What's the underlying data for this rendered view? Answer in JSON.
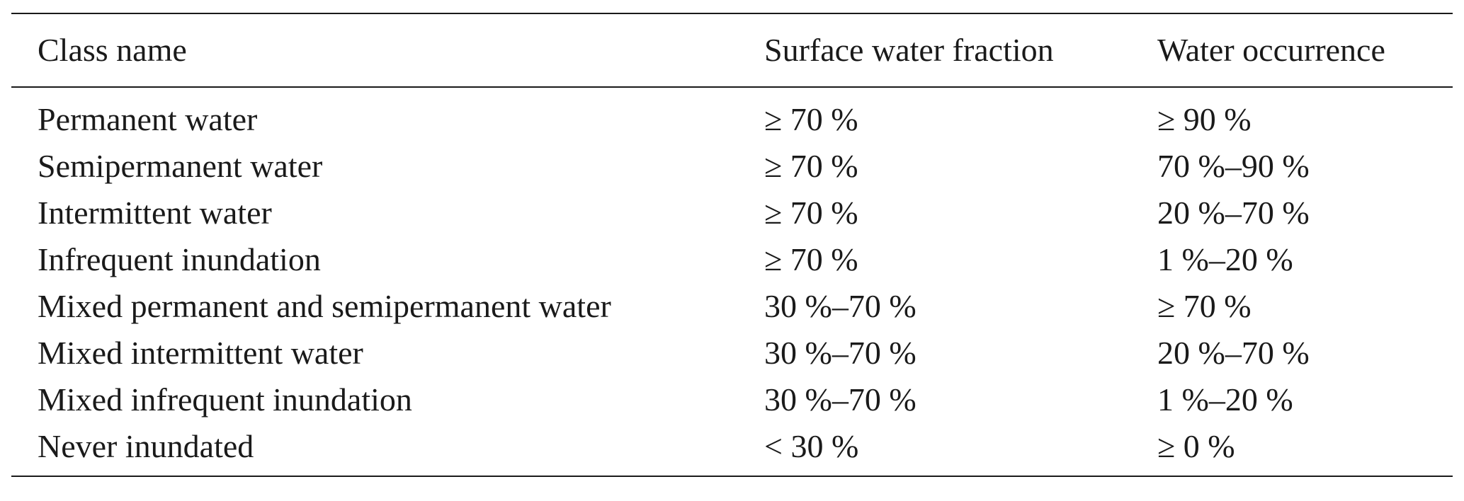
{
  "table": {
    "headers": {
      "class_name": "Class name",
      "surface_water_fraction": "Surface water fraction",
      "water_occurrence": "Water occurrence"
    },
    "rows": [
      {
        "class_name": "Permanent water",
        "surface_water_fraction": "≥ 70 %",
        "water_occurrence": "≥ 90 %"
      },
      {
        "class_name": "Semipermanent water",
        "surface_water_fraction": "≥ 70 %",
        "water_occurrence": "70 %–90 %"
      },
      {
        "class_name": "Intermittent water",
        "surface_water_fraction": "≥ 70 %",
        "water_occurrence": "20 %–70 %"
      },
      {
        "class_name": "Infrequent inundation",
        "surface_water_fraction": "≥ 70 %",
        "water_occurrence": "1 %–20 %"
      },
      {
        "class_name": "Mixed permanent and semipermanent water",
        "surface_water_fraction": "30 %–70 %",
        "water_occurrence": "≥ 70 %"
      },
      {
        "class_name": "Mixed intermittent water",
        "surface_water_fraction": "30 %–70 %",
        "water_occurrence": "20 %–70 %"
      },
      {
        "class_name": "Mixed infrequent inundation",
        "surface_water_fraction": "30 %–70 %",
        "water_occurrence": "1 %–20 %"
      },
      {
        "class_name": "Never inundated",
        "surface_water_fraction": "< 30 %",
        "water_occurrence": "≥ 0 %"
      }
    ]
  }
}
